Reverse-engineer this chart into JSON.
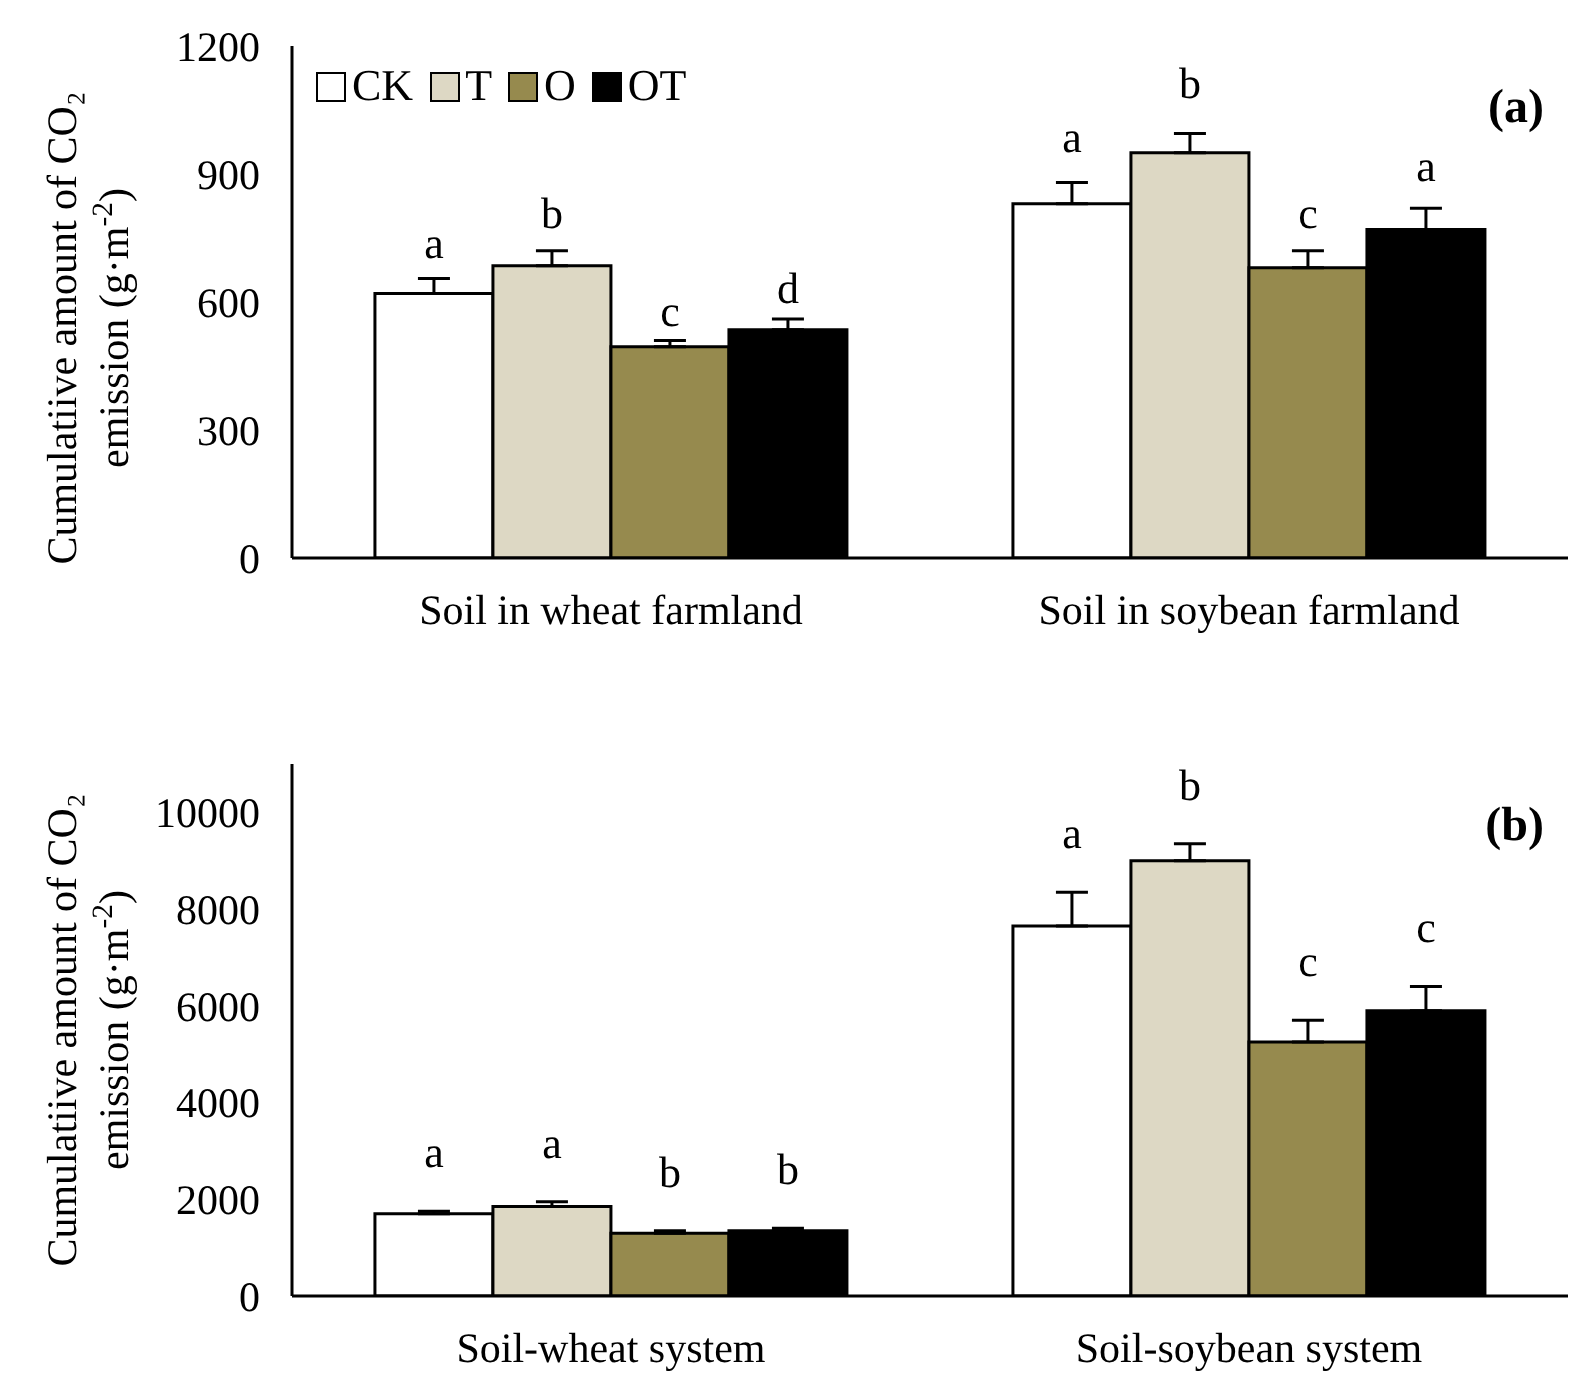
{
  "chart_data": [
    {
      "type": "bar",
      "ylabel": "Cumulatiive  amount of CO₂\nemission (g·m$^{-2}$)",
      "categories": [
        "Soil in wheat farmland",
        "Soil in soybean farmland"
      ],
      "ylim": [
        0,
        1200
      ],
      "yticks": [
        0,
        300,
        600,
        900,
        1200
      ],
      "legend": "top left",
      "annotations": [
        "(a)"
      ],
      "series": [
        {
          "name": "CK",
          "color": "#ffffff",
          "values": [
            620,
            830
          ],
          "errors": [
            [
              620,
              655
            ],
            [
              830,
              880
            ]
          ],
          "value_labels": [
            "a",
            "a"
          ]
        },
        {
          "name": "T",
          "color": "#ddd8c4",
          "values": [
            685,
            950
          ],
          "errors": [
            [
              685,
              720
            ],
            [
              950,
              995
            ]
          ],
          "value_labels": [
            "b",
            "b"
          ]
        },
        {
          "name": "O",
          "color": "#968a4e",
          "values": [
            495,
            680
          ],
          "errors": [
            [
              495,
              510
            ],
            [
              680,
              720
            ]
          ],
          "value_labels": [
            "c",
            "c"
          ]
        },
        {
          "name": "OT",
          "color": "#000000",
          "values": [
            535,
            770
          ],
          "errors": [
            [
              535,
              560
            ],
            [
              770,
              820
            ]
          ],
          "value_labels": [
            "d",
            "a"
          ]
        }
      ]
    },
    {
      "type": "bar",
      "ylabel": "Cumulatiive  amount of CO₂\nemission (g·m$^{-2}$)",
      "categories": [
        "Soil-wheat system",
        "Soil-soybean system"
      ],
      "ylim": [
        0,
        11000
      ],
      "yticks": [
        0,
        2000,
        4000,
        6000,
        8000,
        10000
      ],
      "annotations": [
        "(b)"
      ],
      "series": [
        {
          "color": "#ffffff",
          "values": [
            1700,
            7650
          ],
          "errors": [
            [
              1700,
              1750
            ],
            [
              7650,
              8350
            ]
          ],
          "value_labels": [
            "a",
            "a"
          ]
        },
        {
          "color": "#ddd8c4",
          "values": [
            1850,
            9000
          ],
          "errors": [
            [
              1850,
              1950
            ],
            [
              9000,
              9350
            ]
          ],
          "value_labels": [
            "a",
            "b"
          ]
        },
        {
          "color": "#968a4e",
          "values": [
            1300,
            5250
          ],
          "errors": [
            [
              1300,
              1350
            ],
            [
              5250,
              5700
            ]
          ],
          "value_labels": [
            "b",
            "c"
          ]
        },
        {
          "color": "#000000",
          "values": [
            1350,
            5900
          ],
          "errors": [
            [
              1350,
              1400
            ],
            [
              5900,
              6400
            ]
          ],
          "value_labels": [
            "b",
            "c"
          ]
        }
      ]
    }
  ]
}
